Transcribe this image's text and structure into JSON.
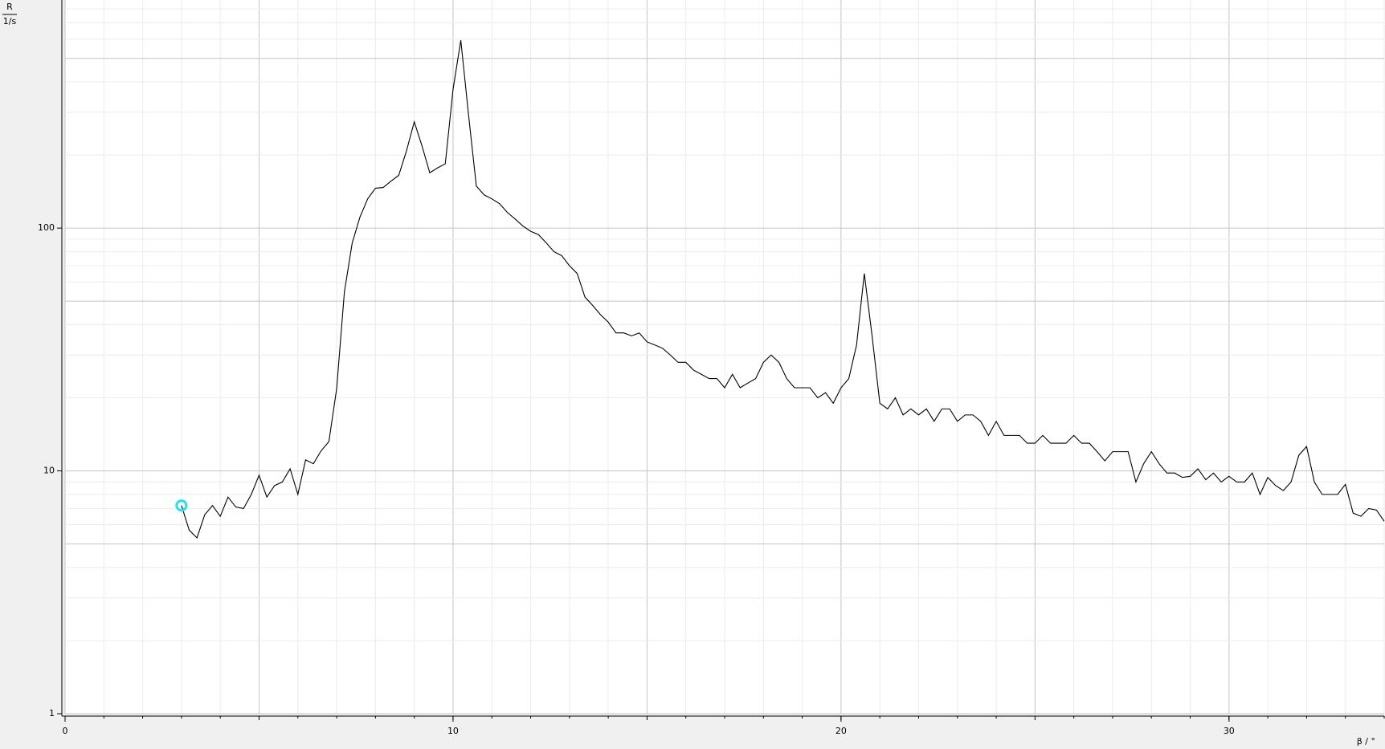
{
  "chart_data": {
    "type": "line",
    "log_y": true,
    "grid": true,
    "y_label_top": "R",
    "y_label_bottom": "1/s",
    "x_label": "β / °",
    "xlim": [
      0,
      34
    ],
    "ylim": [
      1,
      870
    ],
    "xticks": [
      0,
      10,
      20,
      30
    ],
    "yticks": [
      1,
      10,
      100
    ],
    "color": "#000000",
    "marker_color": "#22e0f0",
    "x": [
      3,
      3.2,
      3.4,
      3.6,
      3.8,
      4,
      4.2,
      4.4,
      4.6,
      4.8,
      5,
      5.2,
      5.4,
      5.6,
      5.8,
      6,
      6.2,
      6.4,
      6.6,
      6.8,
      7,
      7.2,
      7.4,
      7.6,
      7.8,
      8,
      8.2,
      8.4,
      8.6,
      8.8,
      9,
      9.2,
      9.4,
      9.6,
      9.8,
      10,
      10.2,
      10.4,
      10.6,
      10.8,
      11,
      11.2,
      11.4,
      11.6,
      11.8,
      12,
      12.2,
      12.4,
      12.6,
      12.8,
      13,
      13.2,
      13.4,
      13.6,
      13.8,
      14,
      14.2,
      14.4,
      14.6,
      14.8,
      15,
      15.2,
      15.4,
      15.6,
      15.8,
      16,
      16.2,
      16.4,
      16.6,
      16.8,
      17,
      17.2,
      17.4,
      17.6,
      17.8,
      18,
      18.2,
      18.4,
      18.6,
      18.8,
      19,
      19.2,
      19.4,
      19.6,
      19.8,
      20,
      20.2,
      20.4,
      20.6,
      20.8,
      21,
      21.2,
      21.4,
      21.6,
      21.8,
      22,
      22.2,
      22.4,
      22.6,
      22.8,
      23,
      23.2,
      23.4,
      23.6,
      23.8,
      24,
      24.2,
      24.4,
      24.6,
      24.8,
      25,
      25.2,
      25.4,
      25.6,
      25.8,
      26,
      26.2,
      26.4,
      26.6,
      26.8,
      27,
      27.2,
      27.4,
      27.6,
      27.8,
      28,
      28.2,
      28.4,
      28.6,
      28.8,
      29,
      29.2,
      29.4,
      29.6,
      29.8,
      30,
      30.2,
      30.4,
      30.6,
      30.8,
      31,
      31.2,
      31.4,
      31.6,
      31.8,
      32,
      32.2,
      32.4,
      32.6,
      32.8,
      33,
      33.2,
      33.4,
      33.6,
      33.8,
      34
    ],
    "values": [
      7.2,
      5.7,
      5.3,
      6.6,
      7.2,
      6.5,
      7.8,
      7.1,
      7.0,
      8.0,
      9.6,
      7.8,
      8.7,
      9.0,
      10.2,
      8.0,
      11.1,
      10.7,
      12.1,
      13.2,
      21.8,
      54.7,
      86.7,
      111,
      132,
      146,
      147,
      156,
      165,
      208,
      274,
      218,
      169,
      177,
      184,
      373,
      594,
      292,
      149,
      137,
      132,
      126,
      116,
      109,
      102,
      97,
      94,
      87,
      80,
      77,
      70,
      65,
      52,
      48,
      44,
      41,
      37,
      37,
      36,
      37,
      34,
      33,
      32,
      30,
      28,
      28,
      26,
      25,
      24,
      24,
      22,
      25,
      22,
      23,
      24,
      28,
      30,
      28,
      24,
      22,
      22,
      22,
      20,
      21,
      19,
      22,
      24,
      33,
      65,
      36,
      19,
      18,
      20,
      17,
      18,
      17,
      18,
      16,
      18,
      18,
      16,
      17,
      17,
      16,
      14,
      16,
      14,
      14,
      14,
      13,
      13,
      14,
      13,
      13,
      13,
      14,
      13,
      13,
      12,
      11,
      12,
      12,
      12,
      9.0,
      10.7,
      12,
      10.7,
      9.8,
      9.8,
      9.4,
      9.5,
      10.2,
      9.2,
      9.8,
      9.0,
      9.5,
      9.0,
      9.0,
      9.8,
      8.0,
      9.4,
      8.7,
      8.3,
      9.0,
      11.6,
      12.6,
      9.0,
      8.0,
      8.0,
      8.0,
      8.8,
      6.7,
      6.5,
      7.0,
      6.9,
      6.2
    ]
  }
}
